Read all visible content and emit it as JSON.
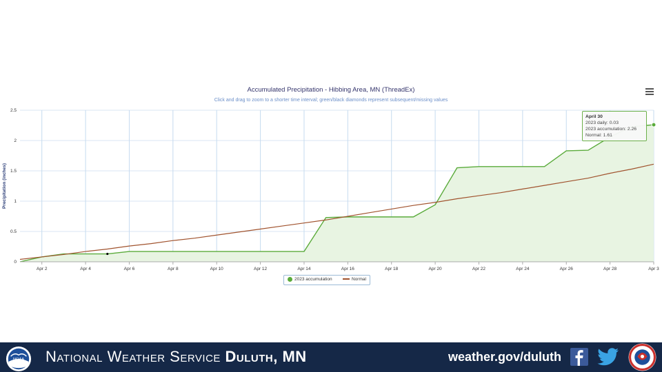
{
  "chart_data": {
    "type": "area",
    "title": "Accumulated Precipitation - Hibbing Area, MN (ThreadEx)",
    "subtitle": "Click and drag to zoom to a shorter time interval; green/black diamonds represent subsequent/missing values",
    "ylabel": "Precipitation (inches)",
    "xlabel": "",
    "ylim": [
      0,
      2.5
    ],
    "xlim": [
      1,
      30
    ],
    "y_ticks": [
      "0",
      "0.5",
      "1",
      "1.5",
      "2",
      "2.5"
    ],
    "y_tick_values": [
      0,
      0.5,
      1,
      1.5,
      2,
      2.5
    ],
    "x_ticks": [
      "Apr 2",
      "Apr 4",
      "Apr 6",
      "Apr 8",
      "Apr 10",
      "Apr 12",
      "Apr 14",
      "Apr 16",
      "Apr 18",
      "Apr 20",
      "Apr 22",
      "Apr 24",
      "Apr 26",
      "Apr 28",
      "Apr 3"
    ],
    "x_tick_values": [
      2,
      4,
      6,
      8,
      10,
      12,
      14,
      16,
      18,
      20,
      22,
      24,
      26,
      28,
      30
    ],
    "grid": true,
    "legend_position": "bottom-center",
    "series": [
      {
        "name": "2023 accumulation",
        "color": "#5aab3b",
        "fill": "#e8f4e2",
        "x": [
          1,
          2,
          3,
          4,
          5,
          6,
          7,
          8,
          9,
          10,
          11,
          12,
          13,
          14,
          15,
          16,
          17,
          18,
          19,
          20,
          21,
          22,
          23,
          24,
          25,
          26,
          27,
          28,
          29,
          30
        ],
        "values": [
          0.0,
          0.08,
          0.13,
          0.13,
          0.13,
          0.17,
          0.17,
          0.17,
          0.17,
          0.17,
          0.17,
          0.17,
          0.17,
          0.17,
          0.73,
          0.74,
          0.74,
          0.74,
          0.74,
          0.94,
          1.55,
          1.57,
          1.57,
          1.57,
          1.57,
          1.83,
          1.84,
          2.06,
          2.23,
          2.26
        ]
      },
      {
        "name": "Normal",
        "color": "#a0522d",
        "x": [
          1,
          2,
          3,
          4,
          5,
          6,
          7,
          8,
          9,
          10,
          11,
          12,
          13,
          14,
          15,
          16,
          17,
          18,
          19,
          20,
          21,
          22,
          23,
          24,
          25,
          26,
          27,
          28,
          29,
          30
        ],
        "values": [
          0.04,
          0.08,
          0.12,
          0.17,
          0.21,
          0.26,
          0.3,
          0.35,
          0.39,
          0.44,
          0.49,
          0.54,
          0.59,
          0.64,
          0.69,
          0.75,
          0.81,
          0.87,
          0.93,
          0.98,
          1.04,
          1.09,
          1.14,
          1.2,
          1.26,
          1.32,
          1.38,
          1.46,
          1.53,
          1.61
        ]
      }
    ],
    "missing_markers": [
      {
        "x": 5,
        "y": 0.13
      }
    ],
    "tooltip": {
      "title": "April 30",
      "line1": "2023 daily: 0.03",
      "line2": "2023 accumulation: 2.26",
      "line3": "Normal: 1.61"
    }
  },
  "footer": {
    "org_name_regular": "National Weather Service ",
    "org_name_bold": "Duluth, MN",
    "url": "weather.gov/duluth",
    "background": "#152847"
  }
}
